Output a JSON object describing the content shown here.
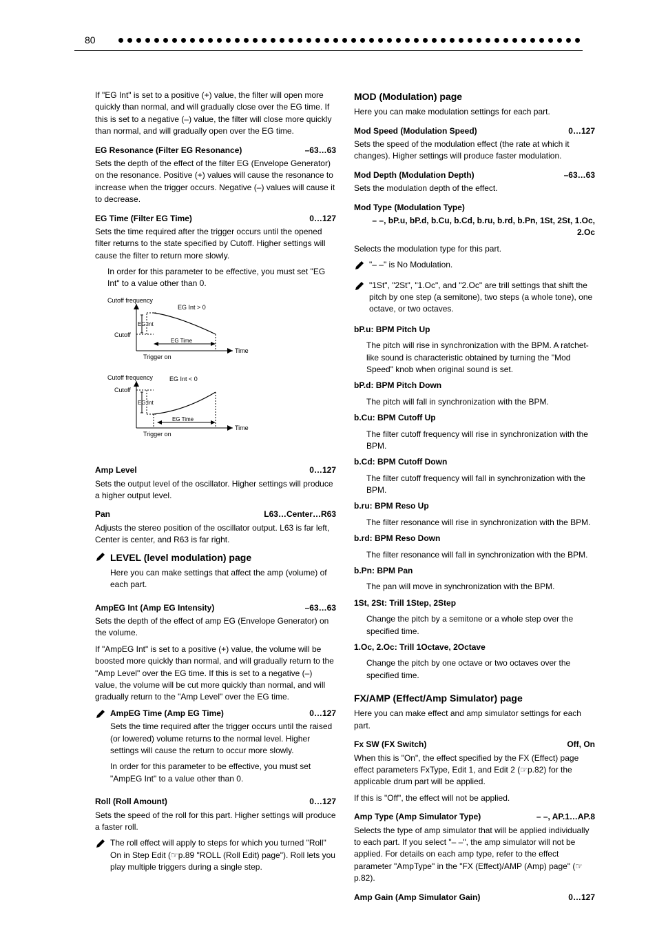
{
  "page_number": "80",
  "left": {
    "p1": "If \"EG Int\" is set to a positive (+) value, the filter will open more quickly than normal, and will gradually close over the EG time. If this is set to a negative (–) value, the filter will close more quickly than normal, and will gradually open over the EG time.",
    "egresonance_title": "EG Resonance (Filter EG Resonance)",
    "egresonance_range": "–63…63",
    "egresonance_body": "Sets the depth of the effect of the filter EG (Envelope Generator) on the resonance. Positive (+) values will cause the resonance to increase when the trigger occurs. Negative (–) values will cause it to decrease.",
    "egtime_title": "EG Time (Filter EG Time)",
    "egtime_range": "0…127",
    "egtime_body": "Sets the time required after the trigger occurs until the opened filter returns to the state specified by Cutoff. Higher settings will cause the filter to return more slowly.",
    "egtime_note": "In order for this parameter to be effective, you must set \"EG Int\" to a value other than 0.",
    "amplevel_title": "Amp Level",
    "amplevel_range": "0…127",
    "amplevel_body": "Sets the output level of the oscillator. Higher settings will produce a higher output level.",
    "pan_title": "Pan",
    "pan_range": "L63…Center…R63",
    "pan_body": "Adjusts the stereo position of the oscillator output. L63 is far left, Center is center, and R63 is far right.",
    "level_section": "LEVEL (level modulation) page",
    "level_intro": "Here you can make settings that affect the amp (volume) of each part.",
    "ampegint_title": "AmpEG Int (Amp EG Intensity)",
    "ampegint_range": "–63…63",
    "ampegint_body": "Sets the depth of the effect of amp EG (Envelope Generator) on the volume.",
    "ampegint_body2": "If \"AmpEG Int\" is set to a positive (+) value, the volume will be boosted more quickly than normal, and will gradually return to the \"Amp Level\" over the EG time. If this is set to a negative (–) value, the volume will be cut more quickly than normal, and will gradually return to the \"Amp Level\" over the EG time.",
    "ampegtime_title": "AmpEG Time (Amp EG Time)",
    "ampegtime_range": "0…127",
    "ampegtime_body": "Sets the time required after the trigger occurs until the raised (or lowered) volume returns to the normal level. Higher settings will cause the return to occur more slowly.",
    "ampegtime_note": "In order for this parameter to be effective, you must set \"AmpEG Int\" to a value other than 0.",
    "roll_title": "Roll (Roll Amount)",
    "roll_range": "0…127",
    "roll_body": "Sets the speed of the roll for this part. Higher settings will produce a faster roll.",
    "roll_note": "The roll effect will apply to steps for which you turned \"Roll\" On in Step Edit (☞p.89 \"ROLL (Roll Edit) page\"). Roll lets you play multiple triggers during a single step."
  },
  "right": {
    "mod_section": "MOD (Modulation) page",
    "mod_intro": "Here you can make modulation settings for each part.",
    "modspeed_title": "Mod Speed (Modulation Speed)",
    "modspeed_range": "0…127",
    "modspeed_body": "Sets the speed of the modulation effect (the rate at which it changes). Higher settings will produce faster modulation.",
    "moddepth_title": "Mod Depth (Modulation Depth)",
    "moddepth_range": "–63…63",
    "moddepth_body": "Sets the modulation depth of the effect.",
    "modtype_title": "Mod Type (Modulation Type)",
    "modtype_range": "– –, bP.u, bP.d, b.Cu, b.Cd, b.ru, b.rd, b.Pn, 1St, 2St, 1.Oc, 2.Oc",
    "modtype_body": "Selects the modulation type for this part.",
    "modtype_note1": "\"– –\" is No Modulation.",
    "modtype_note2": "\"1St\", \"2St\", \"1.Oc\", and \"2.Oc\" are trill settings that shift the pitch by one step (a semitone), two steps (a whole tone), one octave, or two octaves.",
    "bpu": "bP.u: BPM Pitch Up",
    "bpu_body": "The pitch will rise in synchronization with the BPM. A ratchet-like sound is characteristic obtained by turning the \"Mod Speed\" knob when original sound is set.",
    "bpd": "bP.d: BPM Pitch Down",
    "bpd_body": "The pitch will fall in synchronization with the BPM.",
    "bcu": "b.Cu: BPM Cutoff Up",
    "bcu_body": "The filter cutoff frequency will rise in synchronization with the BPM.",
    "bcd": "b.Cd: BPM Cutoff Down",
    "bcd_body": "The filter cutoff frequency will fall in synchronization with the BPM.",
    "bru": "b.ru: BPM Reso Up",
    "bru_body": "The filter resonance will rise in synchronization with the BPM.",
    "brd": "b.rd: BPM Reso Down",
    "brd_body": "The filter resonance will fall in synchronization with the BPM.",
    "bpn": "b.Pn: BPM Pan",
    "bpn_body": "The pan will move in synchronization with the BPM.",
    "st1": "1St, 2St: Trill 1Step, 2Step",
    "st_body": "Change the pitch by a semitone or a whole step over the specified time.",
    "oc1": "1.Oc, 2.Oc: Trill 1Octave, 2Octave",
    "oc_body": "Change the pitch by one octave or two octaves over the specified time.",
    "fx_section": "FX/AMP (Effect/Amp Simulator) page",
    "fx_intro": "Here you can make effect and amp simulator settings for each part.",
    "fxsw_title": "Fx SW (FX Switch)",
    "fxsw_range": "Off, On",
    "fxsw_body1": "When this is \"On\", the effect specified by the FX (Effect) page effect parameters FxType, Edit 1, and Edit 2 (☞p.82) for the applicable drum part will be applied.",
    "fxsw_body2": "If this is \"Off\", the effect will not be applied.",
    "amptype_title": "Amp Type (Amp Simulator Type)",
    "amptype_range": "– –, AP.1…AP.8",
    "amptype_body": "Selects the type of amp simulator that will be applied individually to each part. If you select \"– –\", the amp simulator will not be applied. For details on each amp type, refer to the effect parameter \"AmpType\" in the \"FX (Effect)/AMP (Amp) page\" (☞p.82).",
    "ampgain_title": "Amp Gain (Amp Simulator Gain)",
    "ampgain_range": "0…127"
  },
  "diagram": {
    "label_cutoff_freq": "Cutoff frequency",
    "label_cutoff": "Cutoff",
    "label_egint": "EG Int",
    "label_egtime": "EG Time",
    "label_time": "Time",
    "label_trigger": "Trigger on",
    "label_pos": "EG Int > 0",
    "label_neg": "EG Int < 0",
    "axis_color": "#000000",
    "dash_color": "#000000",
    "curve_color": "#000000",
    "font_size": 9
  },
  "colors": {
    "text": "#000000",
    "background": "#ffffff",
    "dot": "#000000"
  }
}
